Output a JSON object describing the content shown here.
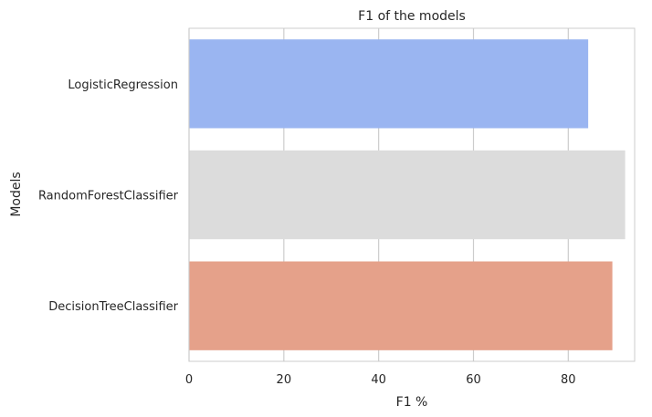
{
  "chart_data": {
    "type": "bar",
    "orientation": "horizontal",
    "title": "F1 of the models",
    "xlabel": "F1 %",
    "ylabel": "Models",
    "categories": [
      "LogisticRegression",
      "RandomForestClassifier",
      "DecisionTreeClassifier"
    ],
    "values": [
      84.2,
      92.0,
      89.3
    ],
    "colors": [
      "#9ab5f1",
      "#dcdcdc",
      "#e5a18a"
    ],
    "xlim": [
      0,
      94
    ],
    "xticks": [
      0,
      20,
      40,
      60,
      80
    ],
    "grid": true,
    "legend": false
  }
}
